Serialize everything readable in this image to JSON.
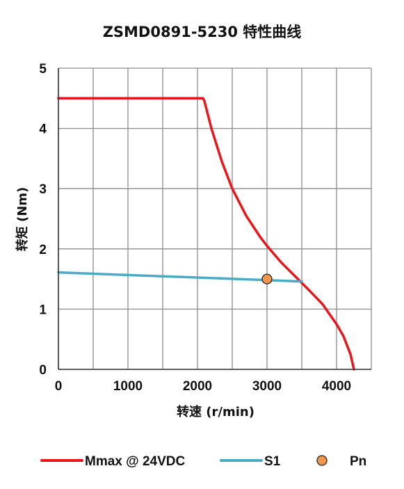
{
  "chart_data": {
    "type": "line",
    "title": "ZSMD0891-5230 特性曲线",
    "xlabel": "转速 (r/min)",
    "ylabel": "转矩 (Nm)",
    "xlim": [
      0,
      4500
    ],
    "ylim": [
      0,
      5
    ],
    "x_ticks": [
      0,
      1000,
      2000,
      3000,
      4000
    ],
    "y_ticks": [
      0,
      1,
      2,
      3,
      4,
      5
    ],
    "x_tick_labels": [
      "0",
      "1000",
      "2000",
      "3000",
      "4000"
    ],
    "y_tick_labels": [
      "0",
      "1",
      "2",
      "3",
      "4",
      "5"
    ],
    "grid": true,
    "grid_x_step": 500,
    "legend_position": "bottom",
    "series": [
      {
        "name": "Mmax @ 24VDC",
        "color": "#e8161b",
        "style": "line",
        "x": [
          0,
          2080,
          2100,
          2200,
          2350,
          2500,
          2700,
          2900,
          3000,
          3200,
          3400,
          3600,
          3800,
          4000,
          4100,
          4200,
          4250
        ],
        "y": [
          4.5,
          4.5,
          4.45,
          4.0,
          3.45,
          3.0,
          2.55,
          2.2,
          2.05,
          1.78,
          1.55,
          1.32,
          1.08,
          0.75,
          0.55,
          0.25,
          0.0
        ]
      },
      {
        "name": "S1",
        "color": "#4aabc6",
        "style": "line",
        "x": [
          0,
          3500
        ],
        "y": [
          1.61,
          1.46
        ]
      },
      {
        "name": "Pn",
        "color": "#f0964f",
        "style": "marker",
        "x": [
          3000
        ],
        "y": [
          1.5
        ]
      }
    ]
  }
}
